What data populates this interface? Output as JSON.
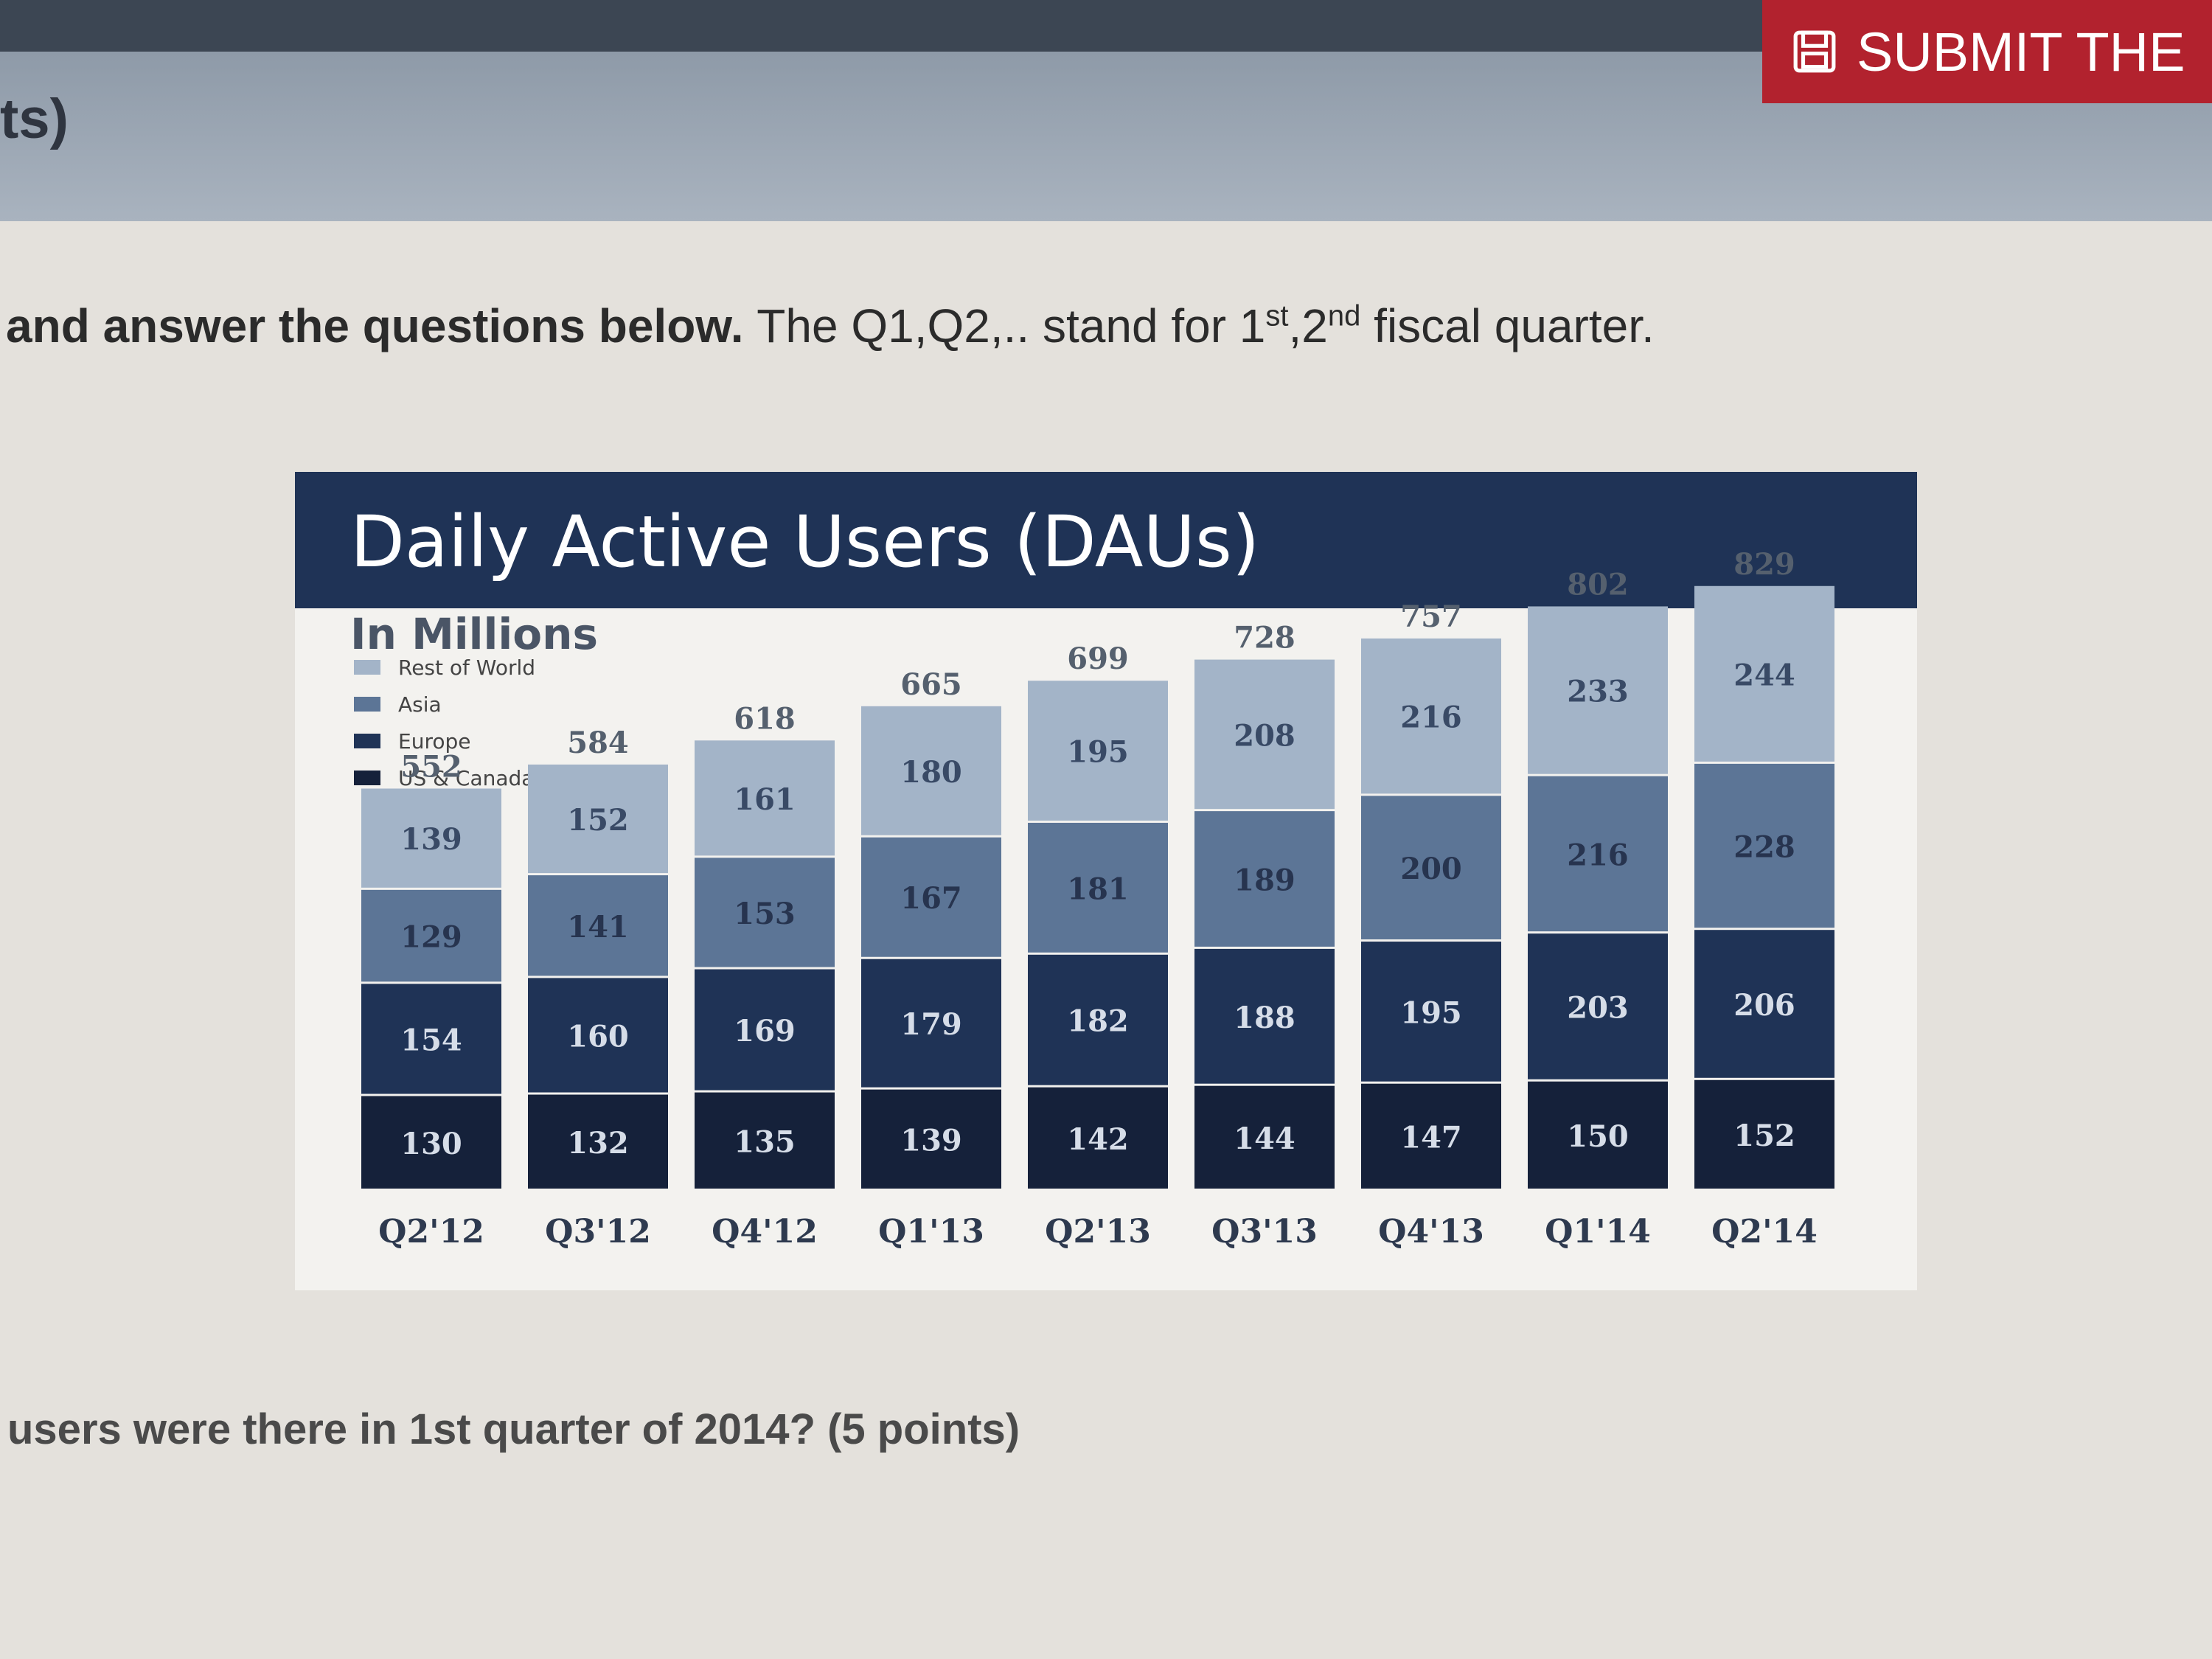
{
  "header": {
    "submit_label": "SUBMIT THE",
    "submit_icon": "save-icon",
    "points_fragment": "ts)",
    "bar_color": "#3c4653",
    "submit_color": "#b2222e"
  },
  "instruction": {
    "bold_part": "and answer the questions below.",
    "text_part": "The Q1,Q2,.. stand for 1",
    "sup1": "st",
    "comma": ",2",
    "sup2": "nd",
    "tail": " fiscal quarter."
  },
  "question": {
    "text": "users were there in 1st quarter of 2014? (5 points)"
  },
  "chart_data": {
    "type": "bar",
    "stacked": true,
    "title": "Daily Active Users (DAUs)",
    "subtitle": "In Millions",
    "categories": [
      "Q2'12",
      "Q3'12",
      "Q4'12",
      "Q1'13",
      "Q2'13",
      "Q3'13",
      "Q4'13",
      "Q1'14",
      "Q2'14"
    ],
    "series": [
      {
        "name": "US & Canada",
        "color": "#15213a",
        "values": [
          130,
          132,
          135,
          139,
          142,
          144,
          147,
          150,
          152
        ]
      },
      {
        "name": "Europe",
        "color": "#1f3356",
        "values": [
          154,
          160,
          169,
          179,
          182,
          188,
          195,
          203,
          206
        ]
      },
      {
        "name": "Asia",
        "color": "#5c7596",
        "values": [
          129,
          141,
          153,
          167,
          181,
          189,
          200,
          216,
          228
        ]
      },
      {
        "name": "Rest of World",
        "color": "#a3b4c8",
        "values": [
          139,
          152,
          161,
          180,
          195,
          208,
          216,
          233,
          244
        ]
      }
    ],
    "totals": [
      552,
      584,
      618,
      665,
      699,
      728,
      757,
      802,
      829
    ],
    "legend_position": "top-left",
    "ylim": [
      0,
      850
    ]
  }
}
